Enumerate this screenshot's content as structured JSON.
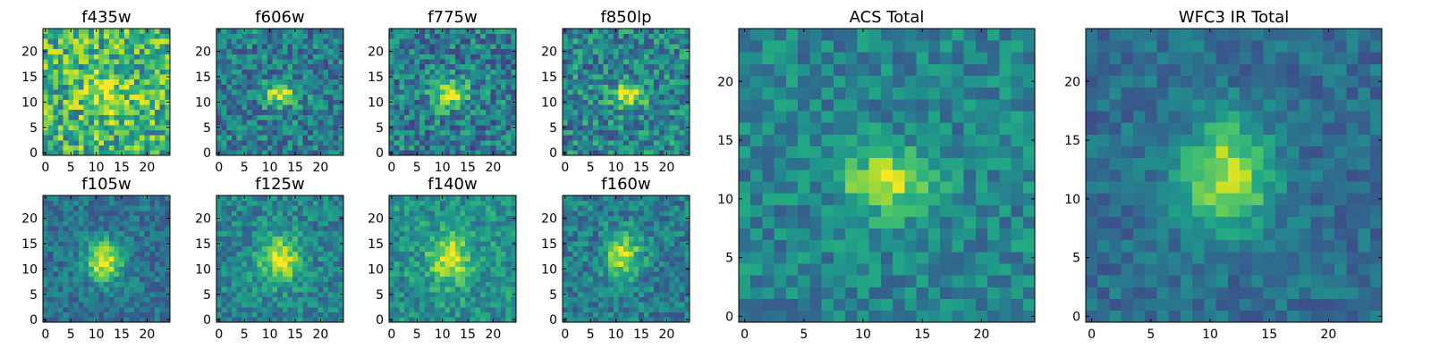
{
  "figure": {
    "colormap": "viridis",
    "background": "#ffffff"
  },
  "chart_data": [
    {
      "type": "heatmap",
      "title": "f435w",
      "grid_size": 25,
      "x_ticks": [
        0,
        5,
        10,
        15,
        20
      ],
      "y_ticks": [
        0,
        5,
        10,
        15,
        20
      ],
      "xlim": [
        0,
        24
      ],
      "ylim": [
        0,
        24
      ],
      "source": {
        "center": [
          12,
          12
        ],
        "sigma_x": 3.5,
        "sigma_y": 3.5,
        "amp": 0.25,
        "base": 0.65,
        "noise": 0.3,
        "seed": 11
      }
    },
    {
      "type": "heatmap",
      "title": "f606w",
      "grid_size": 25,
      "x_ticks": [
        0,
        5,
        10,
        15,
        20
      ],
      "y_ticks": [
        0,
        5,
        10,
        15,
        20
      ],
      "xlim": [
        0,
        24
      ],
      "ylim": [
        0,
        24
      ],
      "source": {
        "center": [
          12,
          11.5
        ],
        "sigma_x": 2.4,
        "sigma_y": 1.6,
        "amp": 0.55,
        "base": 0.42,
        "noise": 0.22,
        "seed": 23
      }
    },
    {
      "type": "heatmap",
      "title": "f775w",
      "grid_size": 25,
      "x_ticks": [
        0,
        5,
        10,
        15,
        20
      ],
      "y_ticks": [
        0,
        5,
        10,
        15,
        20
      ],
      "xlim": [
        0,
        24
      ],
      "ylim": [
        0,
        24
      ],
      "source": {
        "center": [
          11.5,
          11.5
        ],
        "sigma_x": 2.6,
        "sigma_y": 2.0,
        "amp": 0.55,
        "base": 0.42,
        "noise": 0.24,
        "seed": 37
      }
    },
    {
      "type": "heatmap",
      "title": "f850lp",
      "grid_size": 25,
      "x_ticks": [
        0,
        5,
        10,
        15,
        20
      ],
      "y_ticks": [
        0,
        5,
        10,
        15,
        20
      ],
      "xlim": [
        0,
        24
      ],
      "ylim": [
        0,
        24
      ],
      "source": {
        "center": [
          12.5,
          11.5
        ],
        "sigma_x": 2.4,
        "sigma_y": 1.8,
        "amp": 0.5,
        "base": 0.45,
        "noise": 0.24,
        "seed": 41
      }
    },
    {
      "type": "heatmap",
      "title": "f105w",
      "grid_size": 25,
      "x_ticks": [
        0,
        5,
        10,
        15,
        20
      ],
      "y_ticks": [
        0,
        5,
        10,
        15,
        20
      ],
      "xlim": [
        0,
        24
      ],
      "ylim": [
        0,
        24
      ],
      "source": {
        "center": [
          11.5,
          11.5
        ],
        "sigma_x": 2.6,
        "sigma_y": 3.0,
        "amp": 0.6,
        "base": 0.38,
        "noise": 0.15,
        "seed": 53
      }
    },
    {
      "type": "heatmap",
      "title": "f125w",
      "grid_size": 25,
      "x_ticks": [
        0,
        5,
        10,
        15,
        20
      ],
      "y_ticks": [
        0,
        5,
        10,
        15,
        20
      ],
      "xlim": [
        0,
        24
      ],
      "ylim": [
        0,
        24
      ],
      "source": {
        "center": [
          12,
          12
        ],
        "sigma_x": 3.0,
        "sigma_y": 3.4,
        "amp": 0.5,
        "base": 0.45,
        "noise": 0.17,
        "seed": 67
      }
    },
    {
      "type": "heatmap",
      "title": "f140w",
      "grid_size": 25,
      "x_ticks": [
        0,
        5,
        10,
        15,
        20
      ],
      "y_ticks": [
        0,
        5,
        10,
        15,
        20
      ],
      "xlim": [
        0,
        24
      ],
      "ylim": [
        0,
        24
      ],
      "source": {
        "center": [
          11.5,
          12
        ],
        "sigma_x": 3.0,
        "sigma_y": 3.6,
        "amp": 0.45,
        "base": 0.5,
        "noise": 0.17,
        "seed": 79
      }
    },
    {
      "type": "heatmap",
      "title": "f160w",
      "grid_size": 25,
      "x_ticks": [
        0,
        5,
        10,
        15,
        20
      ],
      "y_ticks": [
        0,
        5,
        10,
        15,
        20
      ],
      "xlim": [
        0,
        24
      ],
      "ylim": [
        0,
        24
      ],
      "source": {
        "center": [
          11.5,
          12.5
        ],
        "sigma_x": 2.6,
        "sigma_y": 3.4,
        "amp": 0.5,
        "base": 0.42,
        "noise": 0.18,
        "seed": 83
      }
    },
    {
      "type": "heatmap",
      "title": "ACS Total",
      "grid_size": 25,
      "x_ticks": [
        0,
        5,
        10,
        15,
        20
      ],
      "y_ticks": [
        0,
        5,
        10,
        15,
        20
      ],
      "xlim": [
        0,
        24
      ],
      "ylim": [
        0,
        24
      ],
      "source": {
        "center": [
          12,
          11.5
        ],
        "sigma_x": 2.6,
        "sigma_y": 1.9,
        "amp": 0.5,
        "base": 0.45,
        "noise": 0.16,
        "seed": 97
      }
    },
    {
      "type": "heatmap",
      "title": "WFC3 IR Total",
      "grid_size": 25,
      "x_ticks": [
        0,
        5,
        10,
        15,
        20
      ],
      "y_ticks": [
        0,
        5,
        10,
        15,
        20
      ],
      "xlim": [
        0,
        24
      ],
      "ylim": [
        0,
        24
      ],
      "source": {
        "center": [
          11.5,
          12
        ],
        "sigma_x": 2.8,
        "sigma_y": 3.4,
        "amp": 0.55,
        "base": 0.36,
        "noise": 0.12,
        "seed": 101
      }
    }
  ]
}
